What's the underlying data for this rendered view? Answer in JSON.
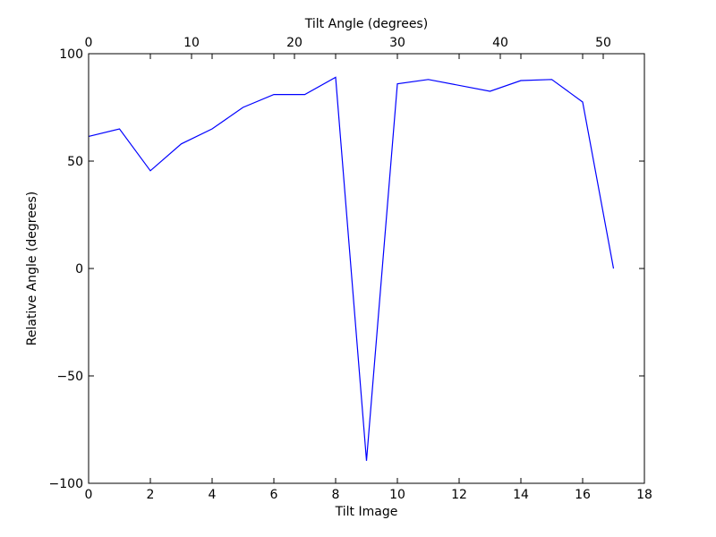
{
  "chart_data": {
    "type": "line",
    "xlabel": "Tilt Image",
    "ylabel": "Relative Angle (degrees)",
    "x2label": "Tilt Angle (degrees)",
    "xlim": [
      0,
      18
    ],
    "ylim": [
      -100,
      100
    ],
    "x2lim": [
      0,
      54
    ],
    "xticks": [
      0,
      2,
      4,
      6,
      8,
      10,
      12,
      14,
      16,
      18
    ],
    "yticks": [
      -100,
      -50,
      0,
      50,
      100
    ],
    "x2ticks": [
      0,
      10,
      20,
      30,
      40,
      50
    ],
    "xtick_labels": [
      "0",
      "2",
      "4",
      "6",
      "8",
      "10",
      "12",
      "14",
      "16",
      "18"
    ],
    "ytick_labels": [
      "−100",
      "−50",
      "0",
      "50",
      "100"
    ],
    "x2tick_labels": [
      "0",
      "10",
      "20",
      "30",
      "40",
      "50"
    ],
    "grid": false,
    "series": [
      {
        "color": "#0000ff",
        "x": [
          0,
          1,
          2,
          3,
          4,
          5,
          6,
          7,
          8,
          9,
          10,
          11,
          13,
          14,
          15,
          16,
          17
        ],
        "y": [
          61.5,
          65,
          45.5,
          58,
          65,
          75,
          81,
          81,
          89,
          -89.5,
          86,
          88,
          82.5,
          87.5,
          88,
          77.5,
          0
        ]
      }
    ]
  }
}
